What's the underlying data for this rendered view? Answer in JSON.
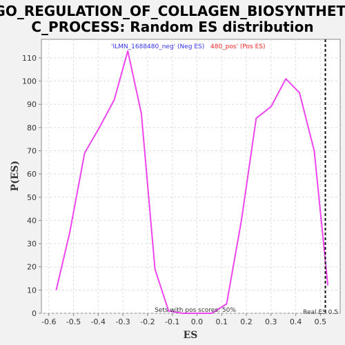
{
  "chart_data": {
    "type": "line",
    "title_line1": "GO_REGULATION_OF_COLLAGEN_BIOSYNTHETI",
    "title_line2": "C_PROCESS: Random ES distribution",
    "xlabel": "ES",
    "ylabel": "P(ES)",
    "xlim": [
      -0.63,
      0.58
    ],
    "ylim": [
      0,
      118
    ],
    "x_ticks": [
      "-0.6",
      "-0.5",
      "-0.4",
      "-0.3",
      "-0.2",
      "-0.1",
      "0.0",
      "0.1",
      "0.2",
      "0.3",
      "0.4",
      "0.5"
    ],
    "y_ticks": [
      "0",
      "10",
      "20",
      "30",
      "40",
      "50",
      "60",
      "70",
      "80",
      "90",
      "100",
      "110"
    ],
    "grid": true,
    "series": [
      {
        "color": "#ee44ee",
        "x": [
          -0.57,
          -0.515,
          -0.455,
          -0.395,
          -0.335,
          -0.28,
          -0.225,
          -0.17,
          -0.115,
          -0.06,
          0.0,
          0.06,
          0.12,
          0.18,
          0.24,
          0.3,
          0.36,
          0.415,
          0.475,
          0.53
        ],
        "values": [
          10,
          35,
          69,
          80,
          92,
          113,
          86,
          19,
          1,
          0,
          0,
          0,
          4,
          40,
          84,
          89,
          101,
          95,
          70,
          12
        ]
      }
    ],
    "real_es": {
      "x": 0.52,
      "label": "Real ES 0.5"
    },
    "legend": {
      "neg_text": "'ILMN_1688480_neg' (Neg ES)",
      "pos_text": "480_pos' (Pos ES)"
    },
    "annotation": "Sets with pos scores: 50%",
    "colors": {
      "neg": "#3333ee",
      "pos": "#ee2222",
      "line": "#ee44ee",
      "grid": "#dddddd"
    }
  }
}
